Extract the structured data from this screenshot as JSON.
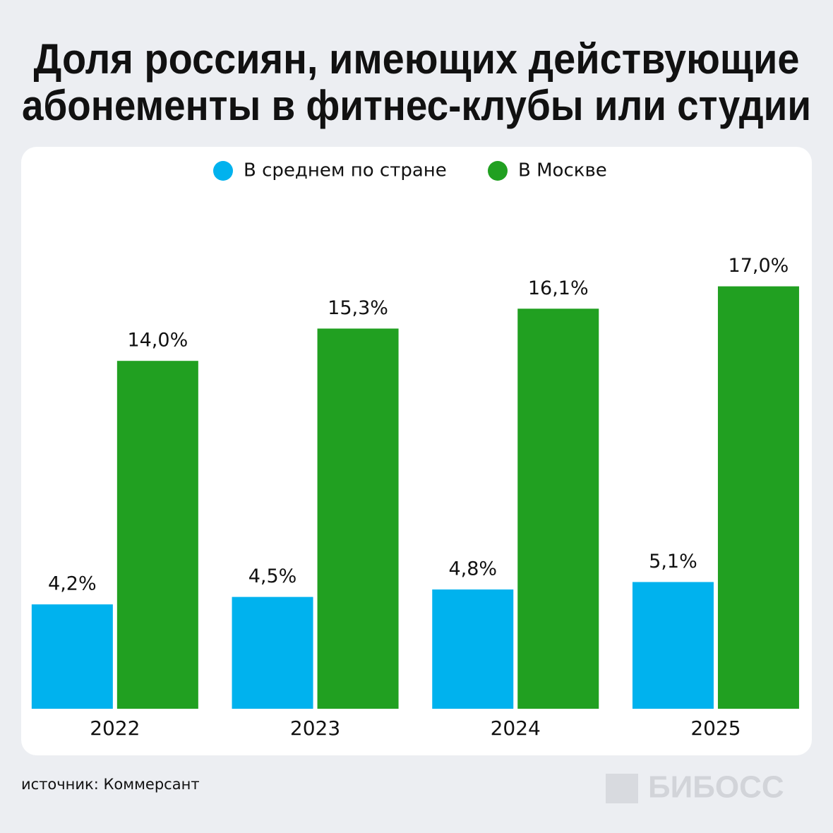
{
  "chart_data": {
    "type": "bar",
    "title": [
      "Доля россиян, имеющих действующие",
      "абонементы в фитнес-клубы или студии"
    ],
    "categories": [
      "2022",
      "2023",
      "2024",
      "2025"
    ],
    "series": [
      {
        "name": "В среднем по стране",
        "color": "#00b2ee",
        "values": [
          4.2,
          4.5,
          4.8,
          5.1
        ],
        "value_labels": [
          "4,2%",
          "4,5%",
          "4,8%",
          "5,1%"
        ]
      },
      {
        "name": "В Москве",
        "color": "#21a021",
        "values": [
          14.0,
          15.3,
          16.1,
          17.0
        ],
        "value_labels": [
          "14,0%",
          "15,3%",
          "16,1%",
          "17,0%"
        ]
      }
    ],
    "ylim": [
      0,
      20
    ],
    "legend": "top",
    "source": "источник: Коммерсант",
    "logo": "БИБОСС"
  }
}
